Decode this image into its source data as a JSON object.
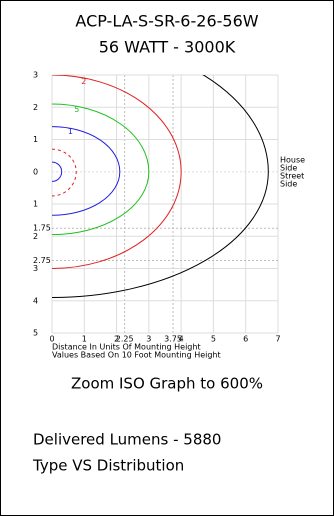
{
  "chart_data": {
    "type": "isofootcandle",
    "title": "ACP-LA-S-SR-6-26-56W",
    "subtitle": "56 WATT - 3000K",
    "xlim": [
      0,
      7
    ],
    "ylim": [
      -5,
      3
    ],
    "xticks": [
      0,
      1,
      2,
      2.25,
      3,
      3.75,
      4,
      5,
      6,
      7
    ],
    "yticks": [
      3,
      2,
      1,
      0,
      {
        "value": -1,
        "label": "1"
      },
      {
        "value": -1.75,
        "label": "1.75"
      },
      {
        "value": -2,
        "label": "2"
      },
      {
        "value": -2.75,
        "label": "2.75"
      },
      {
        "value": -3,
        "label": "3"
      },
      {
        "value": -4,
        "label": "4"
      },
      {
        "value": -5,
        "label": "5"
      }
    ],
    "x_label_lines": [
      "Distance In Units Of Mounting Height",
      "Values Based On 10 Foot Mounting Height"
    ],
    "side_labels": {
      "upper": [
        "House",
        "Side"
      ],
      "lower": [
        "Street",
        "Side"
      ]
    },
    "contours": [
      {
        "color": "#000000",
        "rx": 6.7,
        "ry_top": 4.2,
        "ry_bottom": 3.9
      },
      {
        "label": "2",
        "color": "#e02020",
        "rx": 4.0,
        "ry_top": 3.0,
        "ry_bottom": 3.0
      },
      {
        "label": "5",
        "color": "#20c020",
        "rx": 3.0,
        "ry_top": 2.1,
        "ry_bottom": 1.95
      },
      {
        "label": "1",
        "color": "#2020e0",
        "rx": 2.1,
        "ry_top": 1.4,
        "ry_bottom": 1.35
      },
      {
        "color": "#e02020",
        "dashed": true,
        "rx": 0.75,
        "ry_top": 0.7,
        "ry_bottom": 0.75
      },
      {
        "color": "#2020e0",
        "rx": 0.3,
        "ry_top": 0.3,
        "ry_bottom": 0.3
      }
    ],
    "notes": [
      "Zoom ISO Graph to 600%",
      "Delivered Lumens - 5880",
      "Type VS Distribution"
    ]
  }
}
